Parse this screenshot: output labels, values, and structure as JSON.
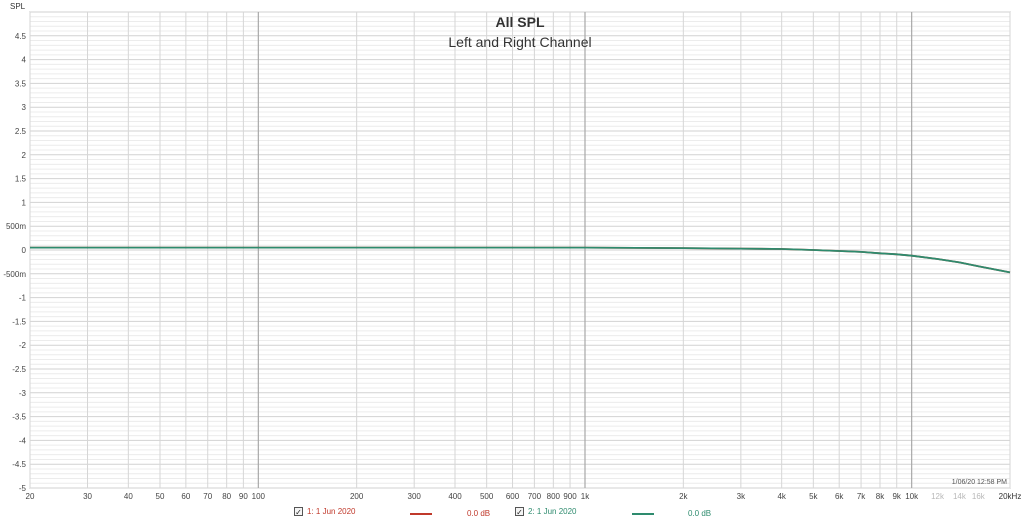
{
  "chart_data": {
    "type": "line",
    "title": "All SPL",
    "subtitle": "Left and Right Channel",
    "ylabel": "SPL",
    "x_unit_label": "20kHz",
    "xlim": [
      20,
      20000
    ],
    "ylim": [
      -5,
      5
    ],
    "x_scale": "log",
    "grid": true,
    "timestamp": "1/06/20 12:58 PM",
    "x_ticks": [
      {
        "value": 20,
        "label": "20"
      },
      {
        "value": 30,
        "label": "30"
      },
      {
        "value": 40,
        "label": "40"
      },
      {
        "value": 50,
        "label": "50"
      },
      {
        "value": 60,
        "label": "60"
      },
      {
        "value": 70,
        "label": "70"
      },
      {
        "value": 80,
        "label": "80"
      },
      {
        "value": 90,
        "label": "90"
      },
      {
        "value": 100,
        "label": "100"
      },
      {
        "value": 200,
        "label": "200"
      },
      {
        "value": 300,
        "label": "300"
      },
      {
        "value": 400,
        "label": "400"
      },
      {
        "value": 500,
        "label": "500"
      },
      {
        "value": 600,
        "label": "600"
      },
      {
        "value": 700,
        "label": "700"
      },
      {
        "value": 800,
        "label": "800"
      },
      {
        "value": 900,
        "label": "900"
      },
      {
        "value": 1000,
        "label": "1k"
      },
      {
        "value": 2000,
        "label": "2k"
      },
      {
        "value": 3000,
        "label": "3k"
      },
      {
        "value": 4000,
        "label": "4k"
      },
      {
        "value": 5000,
        "label": "5k"
      },
      {
        "value": 6000,
        "label": "6k"
      },
      {
        "value": 7000,
        "label": "7k"
      },
      {
        "value": 8000,
        "label": "8k"
      },
      {
        "value": 9000,
        "label": "9k"
      },
      {
        "value": 10000,
        "label": "10k"
      },
      {
        "value": 12000,
        "label": "12k"
      },
      {
        "value": 14000,
        "label": "14k"
      },
      {
        "value": 16000,
        "label": "16k"
      }
    ],
    "y_ticks": [
      {
        "value": 4.5,
        "label": "4.5"
      },
      {
        "value": 4,
        "label": "4"
      },
      {
        "value": 3.5,
        "label": "3.5"
      },
      {
        "value": 3,
        "label": "3"
      },
      {
        "value": 2.5,
        "label": "2.5"
      },
      {
        "value": 2,
        "label": "2"
      },
      {
        "value": 1.5,
        "label": "1.5"
      },
      {
        "value": 1,
        "label": "1"
      },
      {
        "value": 0.5,
        "label": "500m"
      },
      {
        "value": 0,
        "label": "0"
      },
      {
        "value": -0.5,
        "label": "-500m"
      },
      {
        "value": -1,
        "label": "-1"
      },
      {
        "value": -1.5,
        "label": "-1.5"
      },
      {
        "value": -2,
        "label": "-2"
      },
      {
        "value": -2.5,
        "label": "-2.5"
      },
      {
        "value": -3,
        "label": "-3"
      },
      {
        "value": -3.5,
        "label": "-3.5"
      },
      {
        "value": -4,
        "label": "-4"
      },
      {
        "value": -4.5,
        "label": "-4.5"
      },
      {
        "value": -5,
        "label": "-5"
      }
    ],
    "series": [
      {
        "name": "1: 1 Jun 2020",
        "color": "#c0392b",
        "legend_value": "0.0 dB",
        "x": [
          20,
          50,
          100,
          200,
          500,
          1000,
          2000,
          3000,
          4000,
          5000,
          6000,
          7000,
          8000,
          9000,
          10000,
          12000,
          14000,
          16000,
          18000,
          20000
        ],
        "y": [
          0.05,
          0.05,
          0.05,
          0.05,
          0.05,
          0.05,
          0.04,
          0.03,
          0.02,
          0.0,
          -0.02,
          -0.04,
          -0.07,
          -0.09,
          -0.12,
          -0.19,
          -0.26,
          -0.34,
          -0.41,
          -0.47
        ]
      },
      {
        "name": "2: 1 Jun 2020",
        "color": "#2e8b6e",
        "legend_value": "0.0 dB",
        "x": [
          20,
          50,
          100,
          200,
          500,
          1000,
          2000,
          3000,
          4000,
          5000,
          6000,
          7000,
          8000,
          9000,
          10000,
          12000,
          14000,
          16000,
          18000,
          20000
        ],
        "y": [
          0.05,
          0.05,
          0.05,
          0.05,
          0.05,
          0.05,
          0.04,
          0.03,
          0.02,
          0.0,
          -0.02,
          -0.04,
          -0.07,
          -0.09,
          -0.12,
          -0.19,
          -0.26,
          -0.34,
          -0.41,
          -0.47
        ]
      }
    ]
  },
  "legend": {
    "items": [
      {
        "checked": "✓",
        "label": "1: 1 Jun 2020",
        "value": "0.0 dB"
      },
      {
        "checked": "✓",
        "label": "2: 1 Jun 2020",
        "value": "0.0 dB"
      }
    ]
  }
}
